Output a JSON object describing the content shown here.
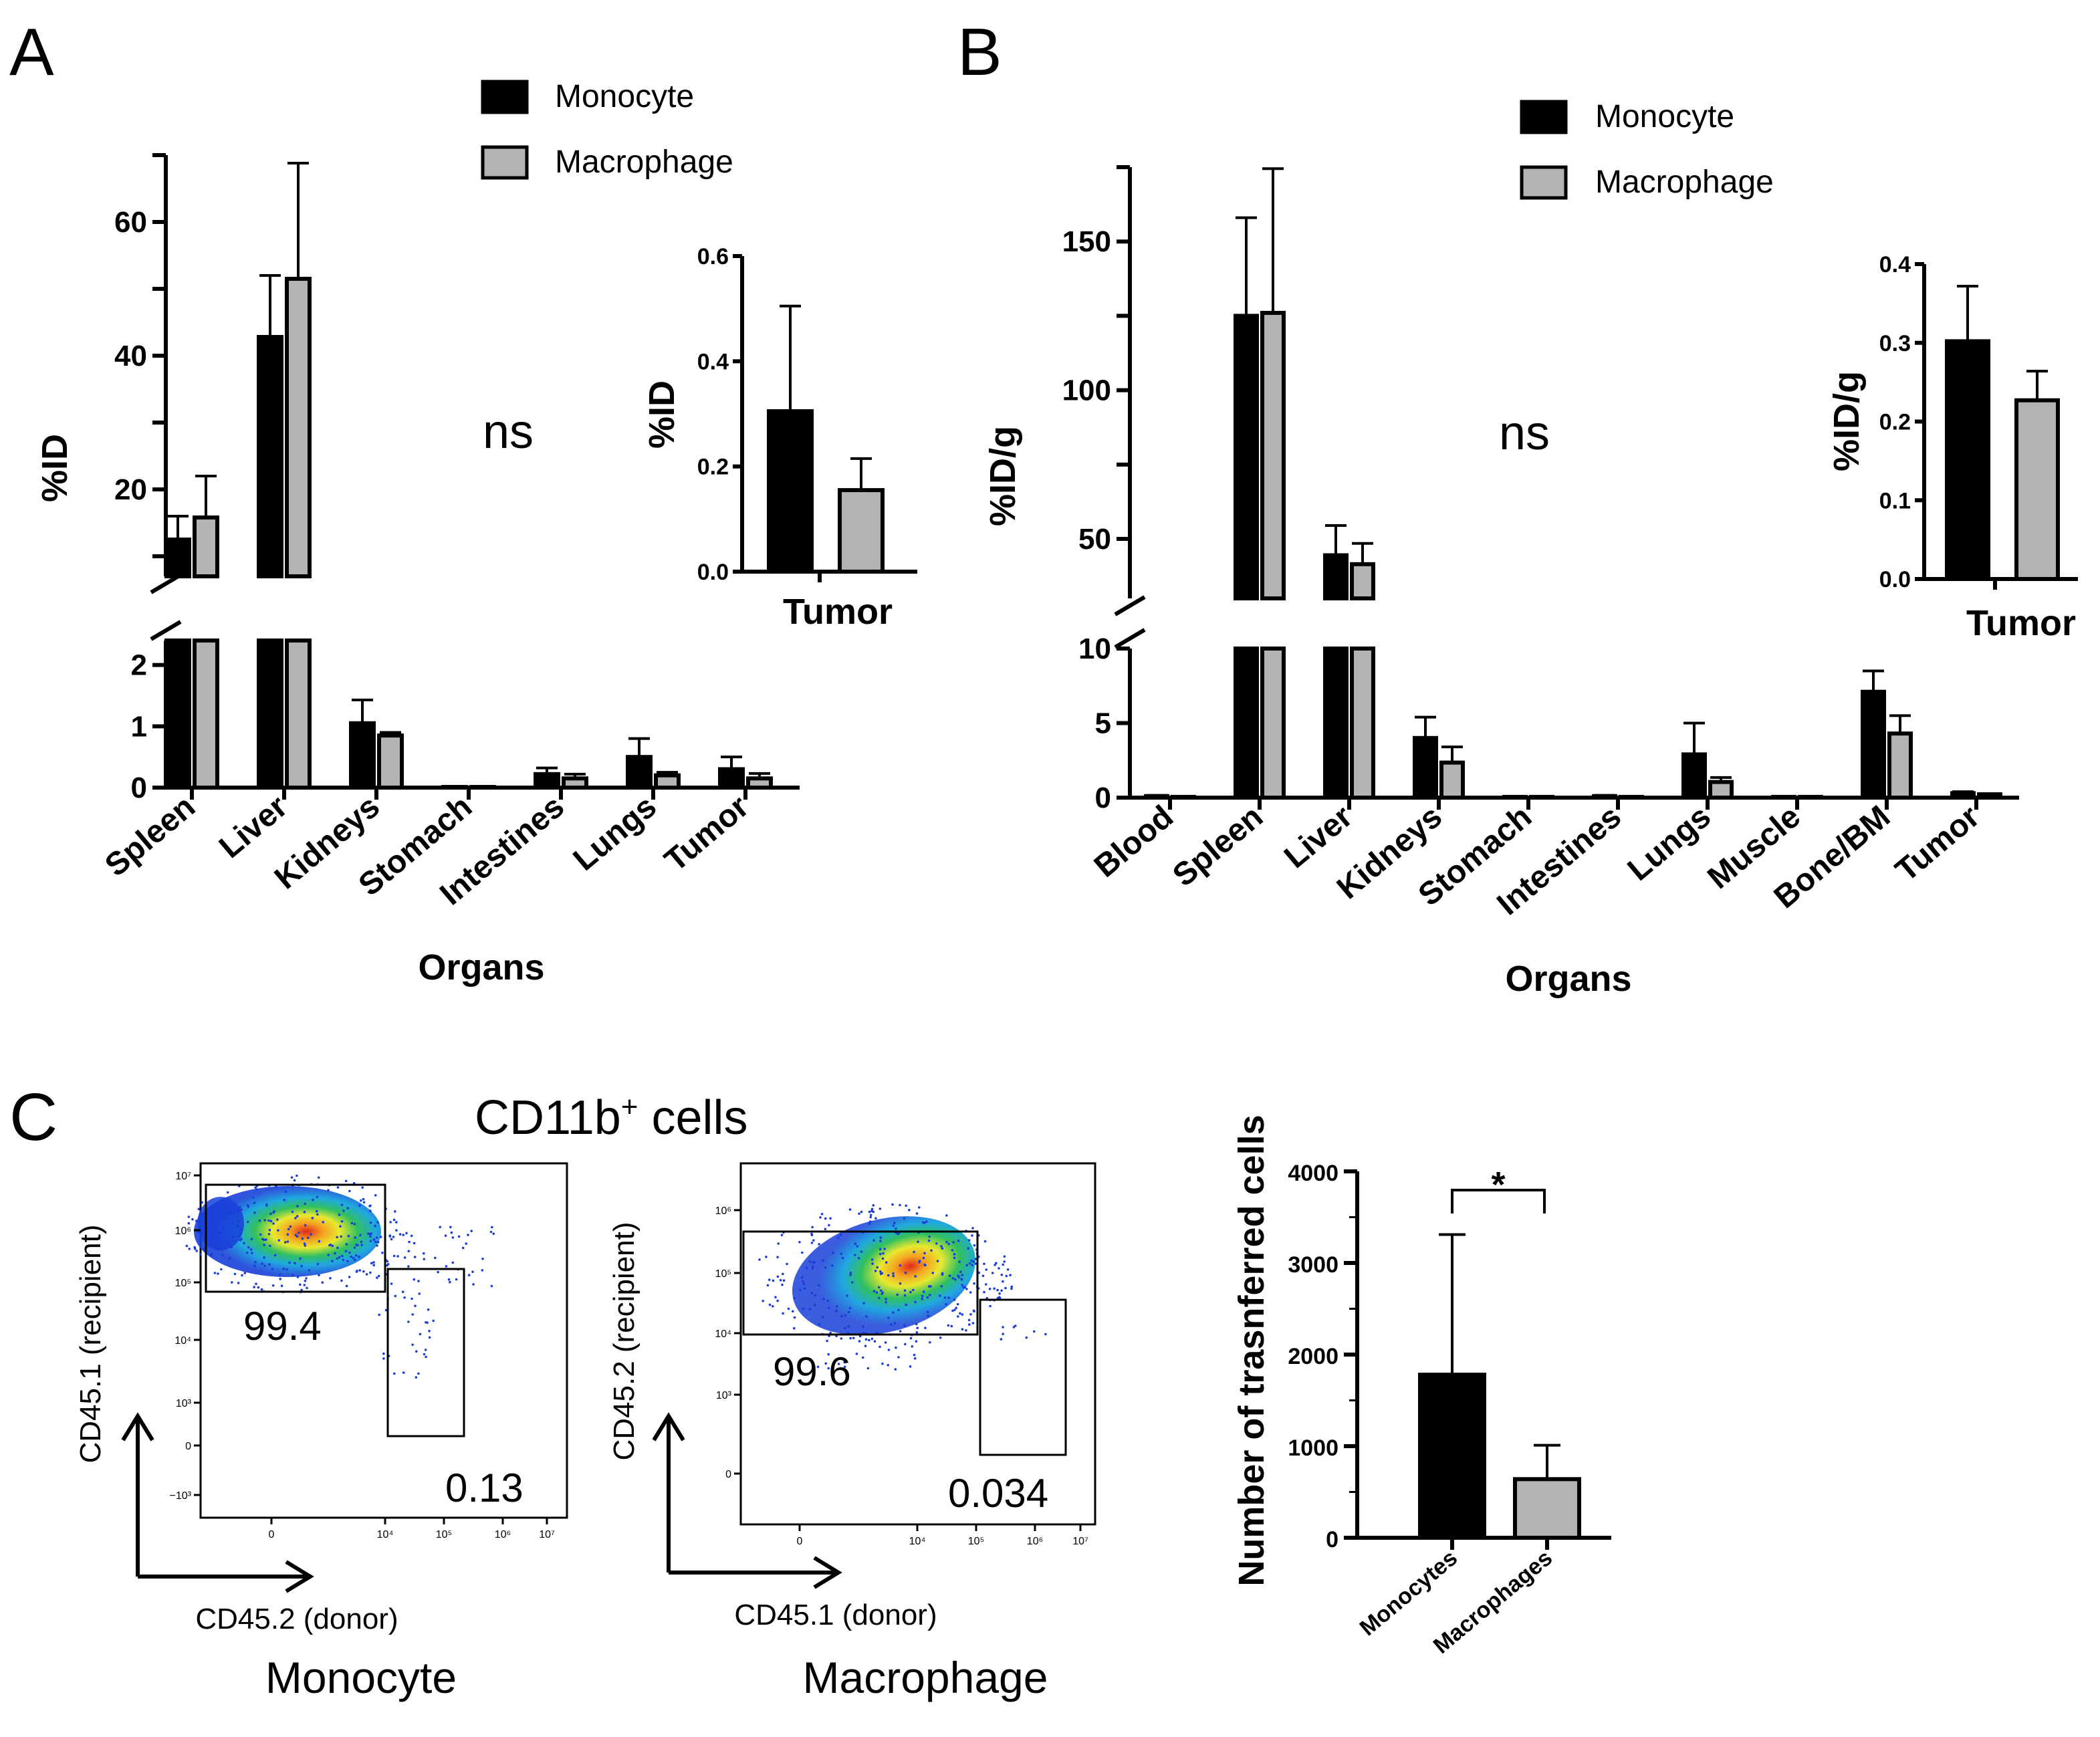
{
  "colors": {
    "monocyte": "#000000",
    "macrophage": "#b3b3b3"
  },
  "chart_data": [
    {
      "id": "A",
      "panel_label": "A",
      "type": "bar",
      "title": "",
      "xlabel": "Organs",
      "ylabel": "%ID",
      "ylim_lower": [
        0,
        2.4
      ],
      "ylim_upper": [
        7,
        70
      ],
      "yticks_lower": [
        "0",
        "1",
        "2"
      ],
      "yticks_upper": [
        "20",
        "40",
        "60"
      ],
      "annotation": "ns",
      "legend": [
        "Monocyte",
        "Macrophage"
      ],
      "categories": [
        "Spleen",
        "Liver",
        "Kidneys",
        "Stomach",
        "Intestines",
        "Lungs",
        "Tumor"
      ],
      "series": [
        {
          "name": "Monocyte",
          "values": [
            12.5,
            42.8,
            1.05,
            0.01,
            0.22,
            0.5,
            0.3
          ],
          "errors": [
            3.5,
            9.2,
            0.38,
            0.01,
            0.1,
            0.3,
            0.2
          ]
        },
        {
          "name": "Macrophage",
          "values": [
            15.8,
            51.5,
            0.85,
            0.01,
            0.15,
            0.2,
            0.15
          ],
          "errors": [
            6.2,
            17.3,
            0.05,
            0.01,
            0.07,
            0.05,
            0.08
          ]
        }
      ],
      "inset": {
        "type": "bar",
        "ylabel": "%ID",
        "xlabel": "Tumor",
        "ylim": [
          0,
          0.6
        ],
        "yticks": [
          "0.0",
          "0.2",
          "0.4",
          "0.6"
        ],
        "values": [
          0.305,
          0.155
        ],
        "errors": [
          0.2,
          0.06
        ]
      }
    },
    {
      "id": "B",
      "panel_label": "B",
      "type": "bar",
      "title": "",
      "xlabel": "Organs",
      "ylabel": "%ID/g",
      "ylim_lower": [
        0,
        10
      ],
      "ylim_upper": [
        30,
        175
      ],
      "yticks_lower": [
        "0",
        "5",
        "10"
      ],
      "yticks_upper": [
        "50",
        "100",
        "150"
      ],
      "annotation": "ns",
      "legend": [
        "Monocyte",
        "Macrophage"
      ],
      "categories": [
        "Blood",
        "Spleen",
        "Liver",
        "Kidneys",
        "Stomach",
        "Intestines",
        "Lungs",
        "Muscle",
        "Bone/BM",
        "Tumor"
      ],
      "series": [
        {
          "name": "Monocyte",
          "values": [
            0.1,
            125,
            44.5,
            4.0,
            0.05,
            0.1,
            2.9,
            0.05,
            7.1,
            0.3
          ],
          "errors": [
            0.05,
            33,
            10,
            1.4,
            0.03,
            0.05,
            2.1,
            0.03,
            1.4,
            0.1
          ]
        },
        {
          "name": "Macrophage",
          "values": [
            0.05,
            126,
            41.5,
            2.35,
            0.05,
            0.05,
            1.05,
            0.05,
            4.3,
            0.22
          ],
          "errors": [
            0.03,
            48.5,
            7,
            1.05,
            0.03,
            0.03,
            0.3,
            0.03,
            1.2,
            0.05
          ]
        }
      ],
      "inset": {
        "type": "bar",
        "ylabel": "%ID/g",
        "xlabel": "Tumor",
        "ylim": [
          0,
          0.4
        ],
        "yticks": [
          "0.0",
          "0.1",
          "0.2",
          "0.3",
          "0.4"
        ],
        "values": [
          0.302,
          0.227
        ],
        "errors": [
          0.07,
          0.037
        ]
      }
    },
    {
      "id": "C-bar",
      "type": "bar",
      "title": "",
      "xlabel": "",
      "ylabel": "Number of trasnferred cells",
      "ylim": [
        0,
        4000
      ],
      "yticks": [
        "0",
        "1000",
        "2000",
        "3000",
        "4000"
      ],
      "categories": [
        "Monocytes",
        "Macrophages"
      ],
      "values": [
        1780,
        640
      ],
      "errors": [
        1530,
        370
      ],
      "significance": "*"
    }
  ],
  "panel_c": {
    "panel_label": "C",
    "title_main": "CD11b",
    "title_sup": "+",
    "title_rest": " cells",
    "plots": [
      {
        "sample": "Monocyte",
        "yaxis": "CD45.1 (recipient)",
        "xaxis": "CD45.2 (donor)",
        "gate1_pct": "99.4",
        "gate2_pct": "0.13",
        "yticks": [
          "10⁷",
          "10⁶",
          "10⁵",
          "10⁴",
          "10³",
          "0",
          "−10³"
        ],
        "xticks": [
          "0",
          "10⁴",
          "10⁵",
          "10⁶",
          "10⁷"
        ]
      },
      {
        "sample": "Macrophage",
        "yaxis": "CD45.2 (recipient)",
        "xaxis": "CD45.1 (donor)",
        "gate1_pct": "99.6",
        "gate2_pct": "0.034",
        "yticks": [
          "10⁶",
          "10⁵",
          "10⁴",
          "10³",
          "0"
        ],
        "xticks": [
          "0",
          "10⁴",
          "10⁵",
          "10⁶",
          "10⁷"
        ]
      }
    ]
  }
}
